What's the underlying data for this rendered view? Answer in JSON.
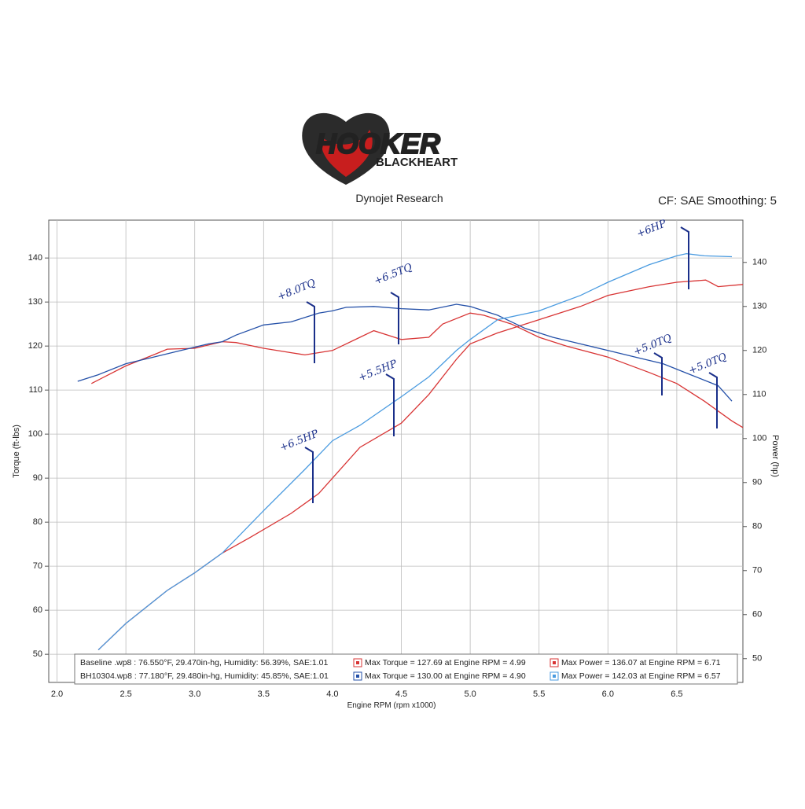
{
  "header": {
    "brand": "HOOKER",
    "sub_brand": "BLACKHEART"
  },
  "chart_data": {
    "type": "line",
    "title": "Dynojet Research",
    "subtitle": "CF: SAE Smoothing: 5",
    "x_label": "Engine RPM (rpm x1000)",
    "y_label": "Torque (ft-lbs)",
    "y2_label": "Power (hp)",
    "xlim": [
      1.94,
      6.98
    ],
    "ylim": [
      43.6,
      148.6
    ],
    "y2lim": [
      44.6,
      149.6
    ],
    "xticks": [
      {
        "value": 2,
        "label": "2.0"
      },
      2.5,
      {
        "value": 3,
        "label": "3.0"
      },
      3.5,
      {
        "value": 4,
        "label": "4.0"
      },
      4.5,
      {
        "value": 5,
        "label": "5.0"
      },
      5.5,
      {
        "value": 6,
        "label": "6.0"
      },
      6.5
    ],
    "yticks": [
      50,
      60,
      70,
      80,
      90,
      100,
      110,
      120,
      130,
      140
    ],
    "y2ticks": [
      50,
      60,
      70,
      80,
      90,
      100,
      110,
      120,
      130,
      140
    ],
    "grid": true,
    "runs": [
      "Baseline .wp8 : 76.550°F, 29.470in-hg, Humidity: 56.39%, SAE:1.01",
      "BH10304.wp8 : 77.180°F, 29.480in-hg, Humidity: 45.85%, SAE:1.01"
    ],
    "series": [
      {
        "name": "Max Torque = 127.69 at Engine RPM = 4.99",
        "color": "#d83434",
        "axis": "y",
        "x": [
          2.25,
          2.5,
          2.7,
          2.8,
          3.0,
          3.2,
          3.3,
          3.5,
          3.7,
          3.8,
          4.0,
          4.2,
          4.3,
          4.5,
          4.7,
          4.8,
          5.0,
          5.1,
          5.3,
          5.5,
          5.7,
          6.0,
          6.3,
          6.5,
          6.7,
          6.9,
          6.98
        ],
        "values": [
          111.5,
          115.5,
          118,
          119.3,
          119.5,
          121,
          120.8,
          119.5,
          118.5,
          118,
          119,
          122,
          123.5,
          121.5,
          122,
          125,
          127.5,
          127,
          125,
          122,
          120,
          117.5,
          114,
          111.5,
          107.5,
          103,
          101.5
        ]
      },
      {
        "name": "Max Power = 136.07 at Engine RPM = 6.71",
        "color": "#d83434",
        "axis": "y2",
        "x": [
          2.3,
          2.5,
          2.8,
          3.0,
          3.2,
          3.4,
          3.7,
          3.9,
          4.0,
          4.2,
          4.5,
          4.7,
          4.9,
          5.0,
          5.2,
          5.5,
          5.8,
          6.0,
          6.3,
          6.5,
          6.71,
          6.8,
          6.98
        ],
        "values": [
          52,
          58,
          65.5,
          69.5,
          74,
          77.5,
          83,
          87.5,
          91,
          98,
          103.5,
          110,
          118,
          121.5,
          124,
          127,
          130,
          132.5,
          134.5,
          135.5,
          136,
          134.5,
          135
        ]
      },
      {
        "name": "Max Torque = 130.00 at Engine RPM = 4.90",
        "color": "#2450a8",
        "axis": "y",
        "x": [
          2.15,
          2.3,
          2.5,
          2.7,
          2.9,
          3.1,
          3.2,
          3.3,
          3.5,
          3.7,
          3.9,
          4.0,
          4.1,
          4.3,
          4.5,
          4.7,
          4.9,
          5.0,
          5.2,
          5.4,
          5.6,
          5.8,
          6.0,
          6.2,
          6.4,
          6.6,
          6.8,
          6.9
        ],
        "values": [
          112,
          113.5,
          116,
          117.5,
          119,
          120.5,
          121,
          122.5,
          124.8,
          125.5,
          127.5,
          128,
          128.8,
          129,
          128.5,
          128.2,
          129.5,
          129,
          127,
          124,
          122,
          120.5,
          119,
          117.5,
          116,
          113.5,
          111,
          107.5
        ]
      },
      {
        "name": "Max Power = 142.03 at Engine RPM = 6.57",
        "color": "#4a9be0",
        "axis": "y2",
        "x": [
          2.3,
          2.5,
          2.8,
          3.0,
          3.2,
          3.5,
          3.8,
          4.0,
          4.2,
          4.5,
          4.7,
          4.9,
          5.0,
          5.2,
          5.5,
          5.8,
          6.0,
          6.3,
          6.5,
          6.57,
          6.7,
          6.9
        ],
        "values": [
          52,
          58,
          65.5,
          69.5,
          74,
          83.6,
          93,
          99.5,
          103,
          109.5,
          114,
          120,
          122.5,
          127,
          129,
          132.5,
          135.5,
          139.5,
          141.5,
          142,
          141.5,
          141.3
        ]
      }
    ],
    "annotations": [
      "+8.0TQ",
      "+6.5TQ",
      "+6HP",
      "+5.5HP",
      "+5.0TQ",
      "+5.0TQ",
      "+6.5HP"
    ]
  }
}
